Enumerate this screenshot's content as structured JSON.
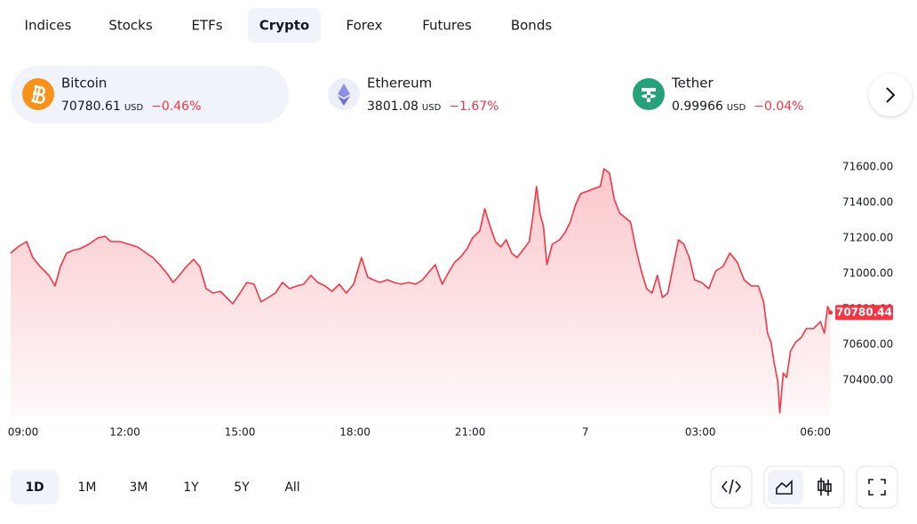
{
  "tabs": [
    "Indices",
    "Stocks",
    "ETFs",
    "Crypto",
    "Forex",
    "Futures",
    "Bonds"
  ],
  "tickers": [
    {
      "name": "Bitcoin",
      "price": "70780.61",
      "currency": "USD",
      "change": "−0.46%"
    },
    {
      "name": "Ethereum",
      "price": "3801.08",
      "currency": "USD",
      "change": "−1.67%"
    },
    {
      "name": "Tether",
      "price": "0.99966",
      "currency": "USD",
      "change": "−0.04%"
    }
  ],
  "ranges": [
    "1D",
    "1M",
    "3M",
    "1Y",
    "5Y",
    "All"
  ],
  "chart_data": {
    "type": "area",
    "color": "#f23645",
    "x": [
      9.02,
      9.21,
      9.44,
      9.6,
      9.79,
      10.02,
      10.18,
      10.32,
      10.48,
      10.64,
      10.83,
      11.06,
      11.29,
      11.48,
      11.64,
      11.87,
      12.1,
      12.33,
      12.56,
      12.73,
      12.91,
      13.1,
      13.26,
      13.38,
      13.61,
      13.79,
      13.95,
      14.12,
      14.3,
      14.49,
      14.65,
      14.81,
      15,
      15.18,
      15.37,
      15.55,
      15.74,
      15.92,
      16.11,
      16.29,
      16.48,
      16.66,
      16.85,
      17.03,
      17.22,
      17.4,
      17.59,
      17.77,
      17.96,
      18.17,
      18.33,
      18.47,
      18.65,
      18.84,
      19.02,
      19.21,
      19.39,
      19.58,
      19.76,
      19.95,
      20.09,
      20.27,
      20.46,
      20.6,
      20.74,
      20.92,
      21.06,
      21.25,
      21.38,
      21.52,
      21.66,
      21.8,
      21.94,
      22.08,
      22.22,
      22.4,
      22.54,
      22.63,
      22.73,
      22.82,
      22.91,
      23,
      23.14,
      23.33,
      23.47,
      23.61,
      23.75,
      23.88,
      24.07,
      24.25,
      24.39,
      24.49,
      24.63,
      24.76,
      24.9,
      25.04,
      25.18,
      25.32,
      25.46,
      25.6,
      25.74,
      25.88,
      26.01,
      26.15,
      26.29,
      26.43,
      26.57,
      26.71,
      26.85,
      27.03,
      27.22,
      27.4,
      27.59,
      27.77,
      27.96,
      28.14,
      28.33,
      28.51,
      28.65,
      28.75,
      28.84,
      28.93,
      29.02,
      29.07,
      29.16,
      29.25,
      29.35,
      29.49,
      29.63,
      29.76,
      29.95,
      30.13,
      30.23,
      30.32,
      30.39
    ],
    "values": [
      71115,
      71150,
      71180,
      71090,
      71040,
      70990,
      70930,
      71040,
      71115,
      71130,
      71140,
      71165,
      71200,
      71210,
      71180,
      71180,
      71165,
      71150,
      71115,
      71090,
      71050,
      71000,
      70950,
      70980,
      71040,
      71080,
      71040,
      70915,
      70890,
      70900,
      70865,
      70830,
      70890,
      70950,
      70940,
      70840,
      70865,
      70890,
      70950,
      70915,
      70930,
      70940,
      70990,
      70950,
      70930,
      70900,
      70940,
      70890,
      70940,
      71090,
      70980,
      70965,
      70950,
      70965,
      70950,
      70940,
      70950,
      70940,
      70965,
      71015,
      71050,
      70940,
      71015,
      71065,
      71090,
      71140,
      71200,
      71240,
      71365,
      71265,
      71180,
      71150,
      71190,
      71115,
      71090,
      71140,
      71180,
      71315,
      71490,
      71340,
      71265,
      71050,
      71165,
      71190,
      71230,
      71290,
      71390,
      71450,
      71465,
      71480,
      71490,
      71590,
      71565,
      71415,
      71340,
      71315,
      71290,
      71140,
      71015,
      70915,
      70890,
      70990,
      70865,
      70890,
      71040,
      71190,
      71165,
      71090,
      70965,
      70950,
      70915,
      71015,
      71040,
      71115,
      71065,
      70965,
      70930,
      70930,
      70840,
      70665,
      70615,
      70490,
      70390,
      70215,
      70440,
      70415,
      70565,
      70615,
      70640,
      70690,
      70690,
      70730,
      70665,
      70815,
      70780.44
    ],
    "xlim": [
      9,
      30.4
    ],
    "xticks": [
      {
        "value": 9,
        "label": "09:00"
      },
      {
        "value": 12,
        "label": "12:00"
      },
      {
        "value": 15,
        "label": "15:00"
      },
      {
        "value": 18,
        "label": "18:00"
      },
      {
        "value": 21,
        "label": "21:00"
      },
      {
        "value": 24,
        "label": "7"
      },
      {
        "value": 27,
        "label": "03:00"
      },
      {
        "value": 30,
        "label": "06:00"
      }
    ],
    "ylim": [
      70200,
      71690
    ],
    "yticks": [
      {
        "value": 70400,
        "label": "70400.00"
      },
      {
        "value": 70600,
        "label": "70600.00"
      },
      {
        "value": 70800,
        "label": "70800.00"
      },
      {
        "value": 71000,
        "label": "71000.00"
      },
      {
        "value": 71200,
        "label": "71200.00"
      },
      {
        "value": 71400,
        "label": "71400.00"
      },
      {
        "value": 71600,
        "label": "71600.00"
      }
    ]
  }
}
